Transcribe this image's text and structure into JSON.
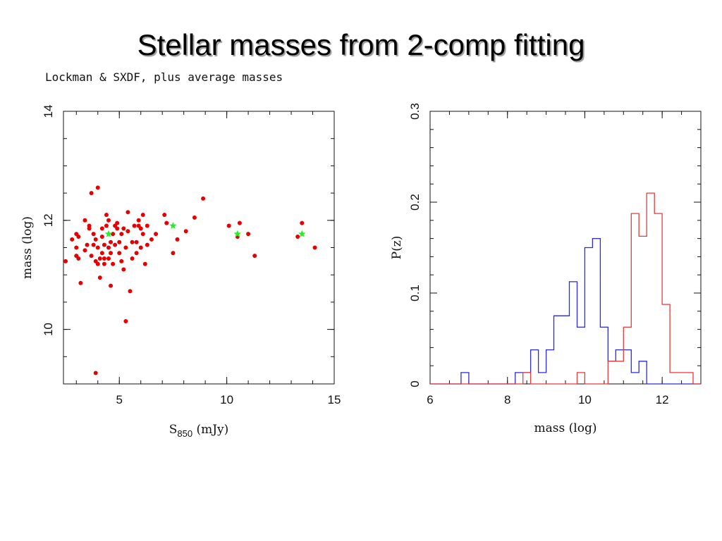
{
  "slide": {
    "title": "Stellar masses from 2-comp fitting",
    "subtitle": "Lockman & SXDF, plus average masses"
  },
  "colors": {
    "points": "#e60000",
    "averages": "#22ee22",
    "hist_red": "#e83a3a",
    "hist_blue": "#2a2ae0"
  },
  "chart_data": [
    {
      "type": "scatter",
      "xlabel_main": "S",
      "xlabel_sub": "850",
      "xlabel_unit": "(mJy)",
      "ylabel": "mass (log)",
      "xlim": [
        2.4,
        15.0
      ],
      "ylim": [
        9.0,
        14.0
      ],
      "xticks": [
        5,
        10,
        15
      ],
      "yticks": [
        10,
        12,
        14
      ],
      "series": [
        {
          "marker": "circle",
          "points": [
            [
              2.5,
              11.25
            ],
            [
              2.8,
              11.65
            ],
            [
              3.0,
              11.75
            ],
            [
              3.0,
              11.5
            ],
            [
              3.0,
              11.35
            ],
            [
              3.1,
              11.3
            ],
            [
              3.1,
              11.7
            ],
            [
              3.2,
              10.85
            ],
            [
              3.4,
              11.45
            ],
            [
              3.4,
              12.0
            ],
            [
              3.5,
              11.55
            ],
            [
              3.6,
              11.85
            ],
            [
              3.6,
              11.9
            ],
            [
              3.7,
              11.35
            ],
            [
              3.7,
              12.5
            ],
            [
              3.8,
              11.75
            ],
            [
              3.8,
              11.55
            ],
            [
              3.9,
              11.25
            ],
            [
              3.9,
              11.65
            ],
            [
              3.9,
              9.2
            ],
            [
              4.0,
              12.6
            ],
            [
              4.0,
              11.5
            ],
            [
              4.0,
              11.2
            ],
            [
              4.1,
              11.3
            ],
            [
              4.1,
              10.95
            ],
            [
              4.2,
              11.4
            ],
            [
              4.2,
              11.7
            ],
            [
              4.2,
              11.85
            ],
            [
              4.3,
              11.3
            ],
            [
              4.3,
              11.2
            ],
            [
              4.3,
              11.55
            ],
            [
              4.4,
              12.1
            ],
            [
              4.4,
              11.9
            ],
            [
              4.5,
              11.3
            ],
            [
              4.5,
              11.5
            ],
            [
              4.5,
              12.0
            ],
            [
              4.6,
              11.4
            ],
            [
              4.6,
              11.6
            ],
            [
              4.6,
              10.8
            ],
            [
              4.7,
              11.75
            ],
            [
              4.7,
              11.2
            ],
            [
              4.8,
              11.55
            ],
            [
              4.8,
              11.9
            ],
            [
              4.9,
              11.85
            ],
            [
              4.9,
              11.95
            ],
            [
              5.0,
              11.6
            ],
            [
              5.0,
              11.4
            ],
            [
              5.1,
              11.25
            ],
            [
              5.1,
              11.75
            ],
            [
              5.2,
              11.85
            ],
            [
              5.2,
              11.1
            ],
            [
              5.3,
              10.15
            ],
            [
              5.3,
              11.5
            ],
            [
              5.4,
              11.8
            ],
            [
              5.4,
              12.15
            ],
            [
              5.5,
              10.7
            ],
            [
              5.6,
              11.3
            ],
            [
              5.6,
              11.6
            ],
            [
              5.7,
              11.9
            ],
            [
              5.8,
              11.4
            ],
            [
              5.8,
              11.6
            ],
            [
              5.9,
              11.9
            ],
            [
              5.9,
              12.0
            ],
            [
              6.0,
              11.5
            ],
            [
              6.0,
              11.85
            ],
            [
              6.1,
              11.75
            ],
            [
              6.1,
              12.1
            ],
            [
              6.2,
              11.2
            ],
            [
              6.3,
              11.9
            ],
            [
              6.3,
              11.55
            ],
            [
              6.5,
              11.65
            ],
            [
              6.7,
              11.75
            ],
            [
              7.1,
              12.1
            ],
            [
              7.2,
              11.95
            ],
            [
              7.5,
              11.4
            ],
            [
              7.7,
              11.65
            ],
            [
              8.1,
              11.8
            ],
            [
              8.5,
              12.05
            ],
            [
              8.9,
              12.4
            ],
            [
              10.1,
              11.9
            ],
            [
              10.5,
              11.7
            ],
            [
              10.6,
              11.95
            ],
            [
              11.0,
              11.75
            ],
            [
              11.3,
              11.35
            ],
            [
              13.3,
              11.7
            ],
            [
              13.5,
              11.95
            ],
            [
              14.1,
              11.5
            ]
          ]
        },
        {
          "marker": "star",
          "points": [
            [
              4.5,
              11.75
            ],
            [
              7.5,
              11.9
            ],
            [
              10.5,
              11.75
            ],
            [
              13.5,
              11.75
            ]
          ]
        }
      ]
    },
    {
      "type": "histogram",
      "xlabel": "mass (log)",
      "ylabel": "P(z)",
      "xlim": [
        6.0,
        13.0
      ],
      "ylim": [
        0.0,
        0.3
      ],
      "xticks": [
        6,
        8,
        10,
        12
      ],
      "yticks": [
        0,
        0.1,
        0.2,
        0.3
      ],
      "ytick_labels": [
        "0",
        "0.1",
        "0.2",
        "0.3"
      ],
      "series": [
        {
          "color_key": "hist_blue",
          "steps": [
            [
              6.0,
              6.8,
              0.0
            ],
            [
              6.8,
              7.0,
              0.0125
            ],
            [
              7.0,
              8.2,
              0.0
            ],
            [
              8.2,
              8.6,
              0.0125
            ],
            [
              8.6,
              8.8,
              0.0375
            ],
            [
              8.8,
              9.0,
              0.0125
            ],
            [
              9.0,
              9.2,
              0.0375
            ],
            [
              9.2,
              9.6,
              0.075
            ],
            [
              9.6,
              9.8,
              0.1125
            ],
            [
              9.8,
              10.0,
              0.0625
            ],
            [
              10.0,
              10.2,
              0.15
            ],
            [
              10.2,
              10.4,
              0.16
            ],
            [
              10.4,
              10.6,
              0.0625
            ],
            [
              10.6,
              10.8,
              0.025
            ],
            [
              10.8,
              11.2,
              0.0375
            ],
            [
              11.2,
              11.4,
              0.0125
            ],
            [
              11.4,
              11.6,
              0.025
            ],
            [
              11.6,
              13.0,
              0.0
            ]
          ]
        },
        {
          "color_key": "hist_red",
          "steps": [
            [
              6.0,
              8.4,
              0.0
            ],
            [
              8.4,
              8.6,
              0.0125
            ],
            [
              8.6,
              9.8,
              0.0
            ],
            [
              9.8,
              10.0,
              0.0125
            ],
            [
              10.0,
              10.6,
              0.0
            ],
            [
              10.6,
              11.0,
              0.025
            ],
            [
              11.0,
              11.2,
              0.0625
            ],
            [
              11.2,
              11.4,
              0.1875
            ],
            [
              11.4,
              11.6,
              0.1625
            ],
            [
              11.6,
              11.8,
              0.21
            ],
            [
              11.8,
              12.0,
              0.1875
            ],
            [
              12.0,
              12.2,
              0.0875
            ],
            [
              12.2,
              12.8,
              0.0125
            ],
            [
              12.8,
              13.0,
              0.0
            ]
          ]
        }
      ]
    }
  ]
}
